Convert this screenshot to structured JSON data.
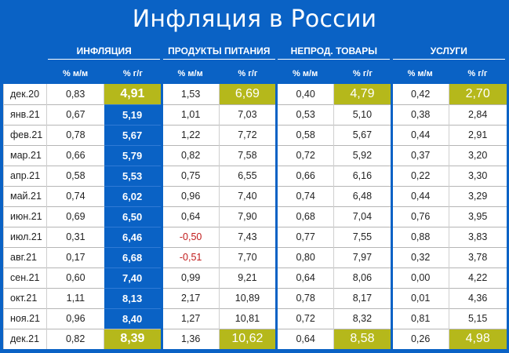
{
  "title": "Инфляция в России",
  "groups": [
    "ИНФЛЯЦИЯ",
    "ПРОДУКТЫ ПИТАНИЯ",
    "НЕПРОД. ТОВАРЫ",
    "УСЛУГИ"
  ],
  "subheaders": [
    "% м/м",
    "% г/г"
  ],
  "highlight_color": "#b5b81b",
  "accent_color": "#0a62c5",
  "negative_color": "#c01a1a",
  "rows": [
    {
      "period": "дек.20",
      "values": [
        "0,83",
        "4,91",
        "1,53",
        "6,69",
        "0,40",
        "4,79",
        "0,42",
        "2,70"
      ]
    },
    {
      "period": "янв.21",
      "values": [
        "0,67",
        "5,19",
        "1,01",
        "7,03",
        "0,53",
        "5,10",
        "0,38",
        "2,84"
      ]
    },
    {
      "period": "фев.21",
      "values": [
        "0,78",
        "5,67",
        "1,22",
        "7,72",
        "0,58",
        "5,67",
        "0,44",
        "2,91"
      ]
    },
    {
      "period": "мар.21",
      "values": [
        "0,66",
        "5,79",
        "0,82",
        "7,58",
        "0,72",
        "5,92",
        "0,37",
        "3,20"
      ]
    },
    {
      "period": "апр.21",
      "values": [
        "0,58",
        "5,53",
        "0,75",
        "6,55",
        "0,66",
        "6,16",
        "0,22",
        "3,30"
      ]
    },
    {
      "period": "май.21",
      "values": [
        "0,74",
        "6,02",
        "0,96",
        "7,40",
        "0,74",
        "6,48",
        "0,44",
        "3,29"
      ]
    },
    {
      "period": "июн.21",
      "values": [
        "0,69",
        "6,50",
        "0,64",
        "7,90",
        "0,68",
        "7,04",
        "0,76",
        "3,95"
      ]
    },
    {
      "period": "июл.21",
      "values": [
        "0,31",
        "6,46",
        "-0,50",
        "7,43",
        "0,77",
        "7,55",
        "0,88",
        "3,83"
      ]
    },
    {
      "period": "авг.21",
      "values": [
        "0,17",
        "6,68",
        "-0,51",
        "7,70",
        "0,80",
        "7,97",
        "0,32",
        "3,78"
      ]
    },
    {
      "period": "сен.21",
      "values": [
        "0,60",
        "7,40",
        "0,99",
        "9,21",
        "0,64",
        "8,06",
        "0,00",
        "4,22"
      ]
    },
    {
      "period": "окт.21",
      "values": [
        "1,11",
        "8,13",
        "2,17",
        "10,89",
        "0,78",
        "8,17",
        "0,01",
        "4,36"
      ]
    },
    {
      "period": "ноя.21",
      "values": [
        "0,96",
        "8,40",
        "1,27",
        "10,81",
        "0,72",
        "8,32",
        "0,81",
        "5,15"
      ]
    },
    {
      "period": "дек.21",
      "values": [
        "0,82",
        "8,39",
        "1,36",
        "10,62",
        "0,64",
        "8,58",
        "0,26",
        "4,98"
      ]
    }
  ]
}
